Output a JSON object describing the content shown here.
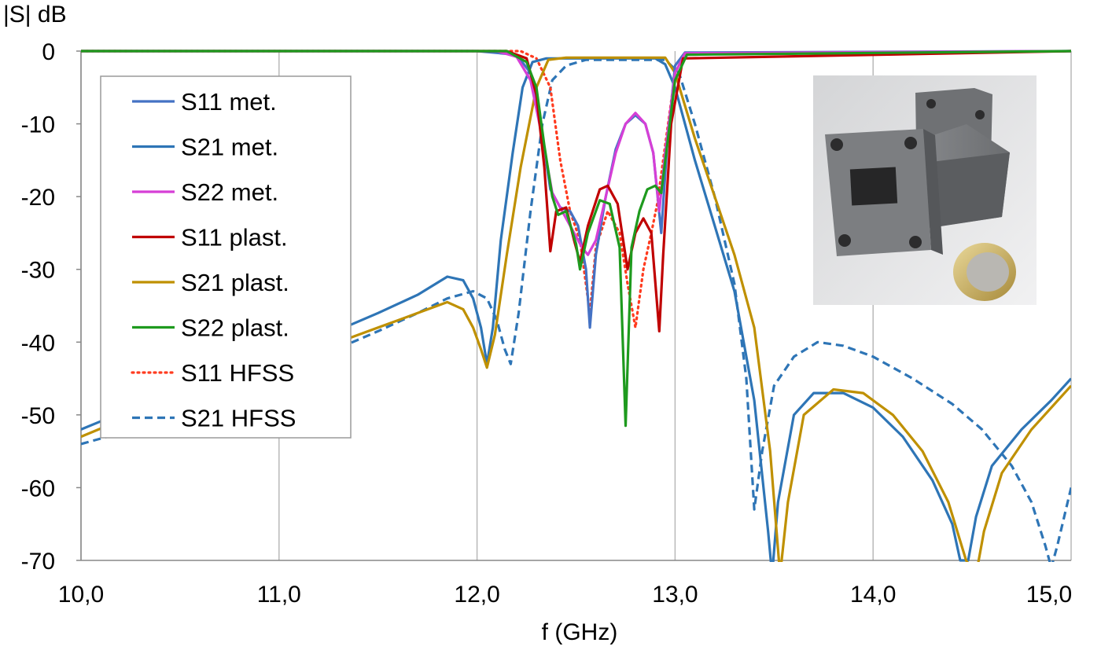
{
  "chart_data": {
    "type": "line",
    "title": "",
    "ylabel": "|S| dB",
    "xlabel": "f (GHz)",
    "xlim": [
      10.0,
      15.0
    ],
    "ylim": [
      -70,
      0
    ],
    "x_ticks": [
      "10,0",
      "11,0",
      "12,0",
      "13,0",
      "14,0",
      "15,0"
    ],
    "y_ticks": [
      "0",
      "-10",
      "-20",
      "-30",
      "-40",
      "-50",
      "-60",
      "-70"
    ],
    "grid": "vertical lines at each GHz",
    "legend_position": "left",
    "series": [
      {
        "name": "S11 met.",
        "color": "#4472c4",
        "style": "solid",
        "points": [
          [
            10.0,
            0
          ],
          [
            12.0,
            0
          ],
          [
            12.2,
            -0.5
          ],
          [
            12.27,
            -3
          ],
          [
            12.32,
            -10
          ],
          [
            12.37,
            -19
          ],
          [
            12.42,
            -21.5
          ],
          [
            12.47,
            -22
          ],
          [
            12.51,
            -24
          ],
          [
            12.55,
            -30
          ],
          [
            12.57,
            -38
          ],
          [
            12.6,
            -28
          ],
          [
            12.65,
            -20
          ],
          [
            12.7,
            -13.5
          ],
          [
            12.75,
            -10
          ],
          [
            12.8,
            -8.8
          ],
          [
            12.85,
            -10
          ],
          [
            12.89,
            -14
          ],
          [
            12.93,
            -25
          ],
          [
            12.96,
            -13
          ],
          [
            13.0,
            -2
          ],
          [
            13.05,
            -0.2
          ],
          [
            15.0,
            0
          ]
        ]
      },
      {
        "name": "S21 met.",
        "color": "#2e75b6",
        "style": "solid",
        "points": [
          [
            10.0,
            -52
          ],
          [
            10.4,
            -47.5
          ],
          [
            10.8,
            -43
          ],
          [
            11.2,
            -39.5
          ],
          [
            11.5,
            -36
          ],
          [
            11.7,
            -33.5
          ],
          [
            11.85,
            -31
          ],
          [
            11.93,
            -31.5
          ],
          [
            11.98,
            -34
          ],
          [
            12.02,
            -38
          ],
          [
            12.05,
            -43
          ],
          [
            12.08,
            -38
          ],
          [
            12.12,
            -26
          ],
          [
            12.18,
            -14
          ],
          [
            12.23,
            -5
          ],
          [
            12.28,
            -1.5
          ],
          [
            12.35,
            -1
          ],
          [
            12.9,
            -1
          ],
          [
            12.95,
            -1.8
          ],
          [
            13.0,
            -5
          ],
          [
            13.1,
            -15
          ],
          [
            13.2,
            -24
          ],
          [
            13.3,
            -33
          ],
          [
            13.4,
            -48
          ],
          [
            13.47,
            -66
          ],
          [
            13.49,
            -72
          ],
          [
            13.52,
            -62
          ],
          [
            13.6,
            -50
          ],
          [
            13.7,
            -47
          ],
          [
            13.85,
            -47
          ],
          [
            14.0,
            -49
          ],
          [
            14.15,
            -53
          ],
          [
            14.3,
            -59
          ],
          [
            14.4,
            -65
          ],
          [
            14.44,
            -70
          ],
          [
            14.48,
            -70
          ],
          [
            14.52,
            -64
          ],
          [
            14.6,
            -57
          ],
          [
            14.75,
            -52
          ],
          [
            14.9,
            -48
          ],
          [
            15.0,
            -45
          ]
        ]
      },
      {
        "name": "S22 met.",
        "color": "#d63fd6",
        "style": "solid",
        "points": [
          [
            10.0,
            0
          ],
          [
            12.1,
            0
          ],
          [
            12.2,
            -0.8
          ],
          [
            12.27,
            -4
          ],
          [
            12.33,
            -12
          ],
          [
            12.38,
            -19.5
          ],
          [
            12.43,
            -22
          ],
          [
            12.48,
            -24.5
          ],
          [
            12.53,
            -27
          ],
          [
            12.56,
            -28
          ],
          [
            12.6,
            -26
          ],
          [
            12.65,
            -20
          ],
          [
            12.7,
            -14
          ],
          [
            12.75,
            -10
          ],
          [
            12.8,
            -8.5
          ],
          [
            12.85,
            -10
          ],
          [
            12.89,
            -14
          ],
          [
            12.92,
            -22
          ],
          [
            12.95,
            -14
          ],
          [
            13.0,
            -3
          ],
          [
            13.05,
            -0.3
          ],
          [
            15.0,
            0
          ]
        ]
      },
      {
        "name": "S11 plast.",
        "color": "#c00000",
        "style": "solid",
        "points": [
          [
            10.0,
            0
          ],
          [
            12.15,
            0
          ],
          [
            12.25,
            -1
          ],
          [
            12.3,
            -6
          ],
          [
            12.34,
            -16
          ],
          [
            12.37,
            -27.5
          ],
          [
            12.4,
            -22
          ],
          [
            12.45,
            -21.5
          ],
          [
            12.49,
            -26
          ],
          [
            12.52,
            -29
          ],
          [
            12.56,
            -24
          ],
          [
            12.62,
            -19
          ],
          [
            12.66,
            -18.5
          ],
          [
            12.71,
            -21
          ],
          [
            12.76,
            -30
          ],
          [
            12.8,
            -25
          ],
          [
            12.84,
            -23
          ],
          [
            12.88,
            -25
          ],
          [
            12.92,
            -38.5
          ],
          [
            12.94,
            -28
          ],
          [
            12.98,
            -10
          ],
          [
            13.04,
            -1
          ],
          [
            15.0,
            0
          ]
        ]
      },
      {
        "name": "S21 plast.",
        "color": "#bf9000",
        "style": "solid",
        "points": [
          [
            10.0,
            -53
          ],
          [
            10.4,
            -48.5
          ],
          [
            10.8,
            -44.5
          ],
          [
            11.2,
            -41
          ],
          [
            11.5,
            -38
          ],
          [
            11.7,
            -36
          ],
          [
            11.85,
            -34.5
          ],
          [
            11.93,
            -35.5
          ],
          [
            11.98,
            -38
          ],
          [
            12.02,
            -41
          ],
          [
            12.05,
            -43.5
          ],
          [
            12.09,
            -39
          ],
          [
            12.15,
            -28
          ],
          [
            12.22,
            -16
          ],
          [
            12.3,
            -5
          ],
          [
            12.36,
            -1.2
          ],
          [
            12.45,
            -0.9
          ],
          [
            12.95,
            -0.9
          ],
          [
            13.0,
            -3
          ],
          [
            13.1,
            -12
          ],
          [
            13.2,
            -20
          ],
          [
            13.3,
            -28
          ],
          [
            13.4,
            -38
          ],
          [
            13.48,
            -55
          ],
          [
            13.53,
            -72
          ],
          [
            13.57,
            -62
          ],
          [
            13.65,
            -50
          ],
          [
            13.8,
            -46.5
          ],
          [
            13.95,
            -47
          ],
          [
            14.1,
            -50
          ],
          [
            14.25,
            -55
          ],
          [
            14.38,
            -62
          ],
          [
            14.47,
            -70
          ],
          [
            14.52,
            -72
          ],
          [
            14.56,
            -66
          ],
          [
            14.65,
            -58
          ],
          [
            14.8,
            -52
          ],
          [
            15.0,
            -46
          ]
        ]
      },
      {
        "name": "S22 plast.",
        "color": "#1e9a1e",
        "style": "solid",
        "points": [
          [
            10.0,
            0
          ],
          [
            12.15,
            0
          ],
          [
            12.25,
            -1.5
          ],
          [
            12.3,
            -5
          ],
          [
            12.34,
            -13
          ],
          [
            12.38,
            -20
          ],
          [
            12.41,
            -22.5
          ],
          [
            12.45,
            -22
          ],
          [
            12.5,
            -26.5
          ],
          [
            12.52,
            -30
          ],
          [
            12.56,
            -25
          ],
          [
            12.62,
            -20.5
          ],
          [
            12.67,
            -21
          ],
          [
            12.72,
            -27
          ],
          [
            12.75,
            -51.5
          ],
          [
            12.78,
            -27
          ],
          [
            12.82,
            -22
          ],
          [
            12.86,
            -19
          ],
          [
            12.9,
            -18.5
          ],
          [
            12.93,
            -19.5
          ],
          [
            12.96,
            -13
          ],
          [
            13.0,
            -4
          ],
          [
            13.06,
            -0.5
          ],
          [
            15.0,
            0
          ]
        ]
      },
      {
        "name": "S11 HFSS",
        "color": "#ff3b1f",
        "style": "dotted",
        "points": [
          [
            10.0,
            0
          ],
          [
            12.22,
            0
          ],
          [
            12.3,
            -1
          ],
          [
            12.37,
            -5
          ],
          [
            12.42,
            -15
          ],
          [
            12.47,
            -22
          ],
          [
            12.52,
            -26
          ],
          [
            12.57,
            -36
          ],
          [
            12.6,
            -27
          ],
          [
            12.66,
            -22
          ],
          [
            12.72,
            -25
          ],
          [
            12.76,
            -32
          ],
          [
            12.8,
            -38
          ],
          [
            12.84,
            -30
          ],
          [
            12.88,
            -25
          ],
          [
            12.91,
            -21
          ],
          [
            12.95,
            -13
          ],
          [
            13.0,
            -3
          ],
          [
            13.05,
            -0.4
          ],
          [
            15.0,
            0
          ]
        ]
      },
      {
        "name": "S21 HFSS",
        "color": "#2e75b6",
        "style": "dashed",
        "points": [
          [
            10.0,
            -54
          ],
          [
            10.4,
            -51
          ],
          [
            10.8,
            -47
          ],
          [
            11.2,
            -42
          ],
          [
            11.5,
            -38.5
          ],
          [
            11.7,
            -36
          ],
          [
            11.85,
            -34
          ],
          [
            11.98,
            -33
          ],
          [
            12.05,
            -34
          ],
          [
            12.1,
            -37
          ],
          [
            12.14,
            -41
          ],
          [
            12.17,
            -43
          ],
          [
            12.21,
            -36
          ],
          [
            12.27,
            -22
          ],
          [
            12.33,
            -10
          ],
          [
            12.38,
            -4
          ],
          [
            12.45,
            -2
          ],
          [
            12.55,
            -1.2
          ],
          [
            12.95,
            -1.2
          ],
          [
            13.02,
            -3
          ],
          [
            13.1,
            -10
          ],
          [
            13.2,
            -20
          ],
          [
            13.3,
            -32
          ],
          [
            13.36,
            -45
          ],
          [
            13.4,
            -63
          ],
          [
            13.44,
            -55
          ],
          [
            13.5,
            -46
          ],
          [
            13.6,
            -42
          ],
          [
            13.72,
            -40
          ],
          [
            13.85,
            -40.5
          ],
          [
            14.0,
            -42
          ],
          [
            14.2,
            -45
          ],
          [
            14.4,
            -48.5
          ],
          [
            14.55,
            -52
          ],
          [
            14.7,
            -57
          ],
          [
            14.8,
            -62
          ],
          [
            14.87,
            -68
          ],
          [
            14.9,
            -71
          ],
          [
            14.93,
            -68
          ],
          [
            15.0,
            -60
          ]
        ]
      }
    ]
  }
}
